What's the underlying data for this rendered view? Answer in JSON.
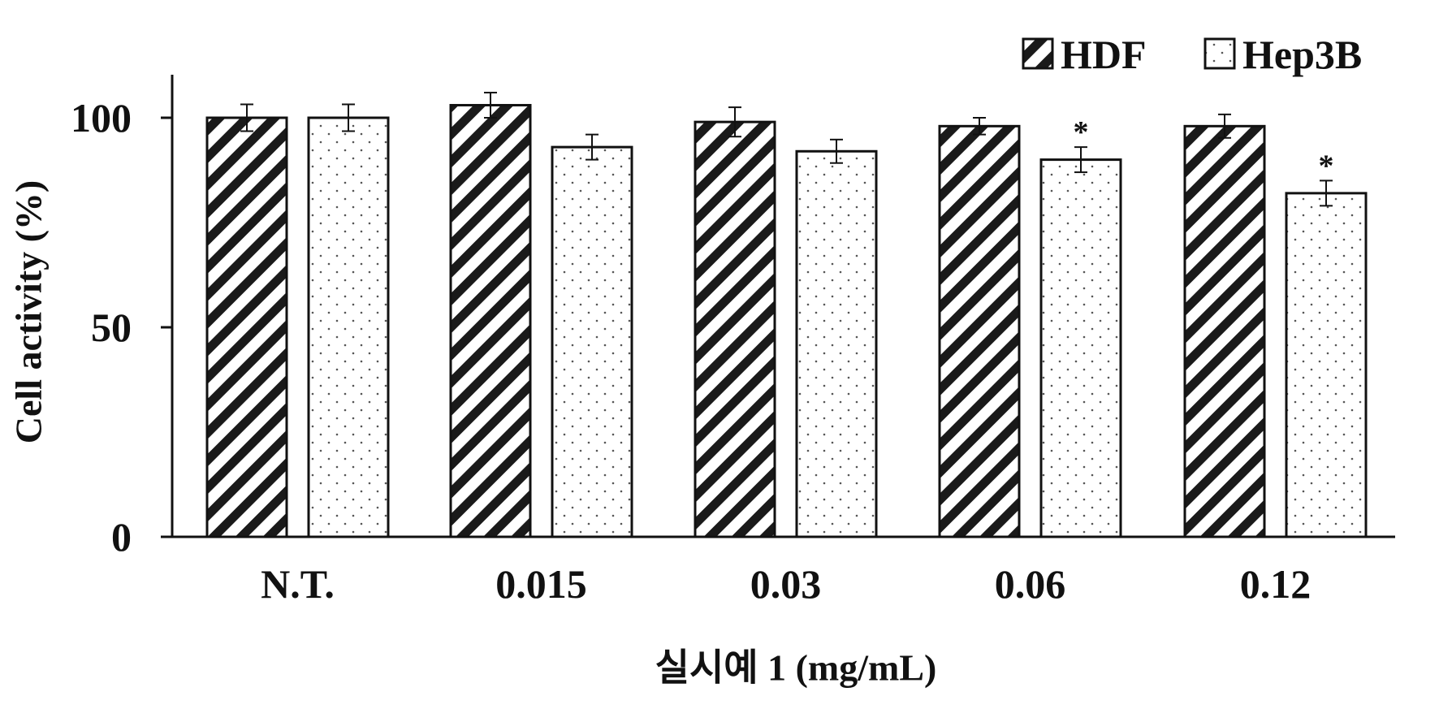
{
  "chart_data": {
    "type": "bar",
    "title": "",
    "xlabel": "실시예 1 (mg/mL)",
    "ylabel": "Cell activity (%)",
    "ylim": [
      0,
      115
    ],
    "yticks": [
      0,
      50,
      100
    ],
    "categories": [
      "N.T.",
      "0.015",
      "0.03",
      "0.06",
      "0.12"
    ],
    "series": [
      {
        "name": "HDF",
        "values": [
          100,
          103,
          99,
          98,
          98
        ],
        "errors": [
          3.2,
          3,
          3.5,
          2,
          2.8
        ],
        "pattern": "diagonal-hatch",
        "color": "#111111"
      },
      {
        "name": "Hep3B",
        "values": [
          100,
          93,
          92,
          90,
          82
        ],
        "errors": [
          3.2,
          3,
          2.8,
          3,
          3
        ],
        "pattern": "dots",
        "color": "#111111"
      }
    ],
    "annotations": [
      {
        "series": "Hep3B",
        "category": "0.06",
        "text": "*"
      },
      {
        "series": "Hep3B",
        "category": "0.12",
        "text": "*"
      }
    ],
    "legend": "top-right",
    "grid": false
  }
}
